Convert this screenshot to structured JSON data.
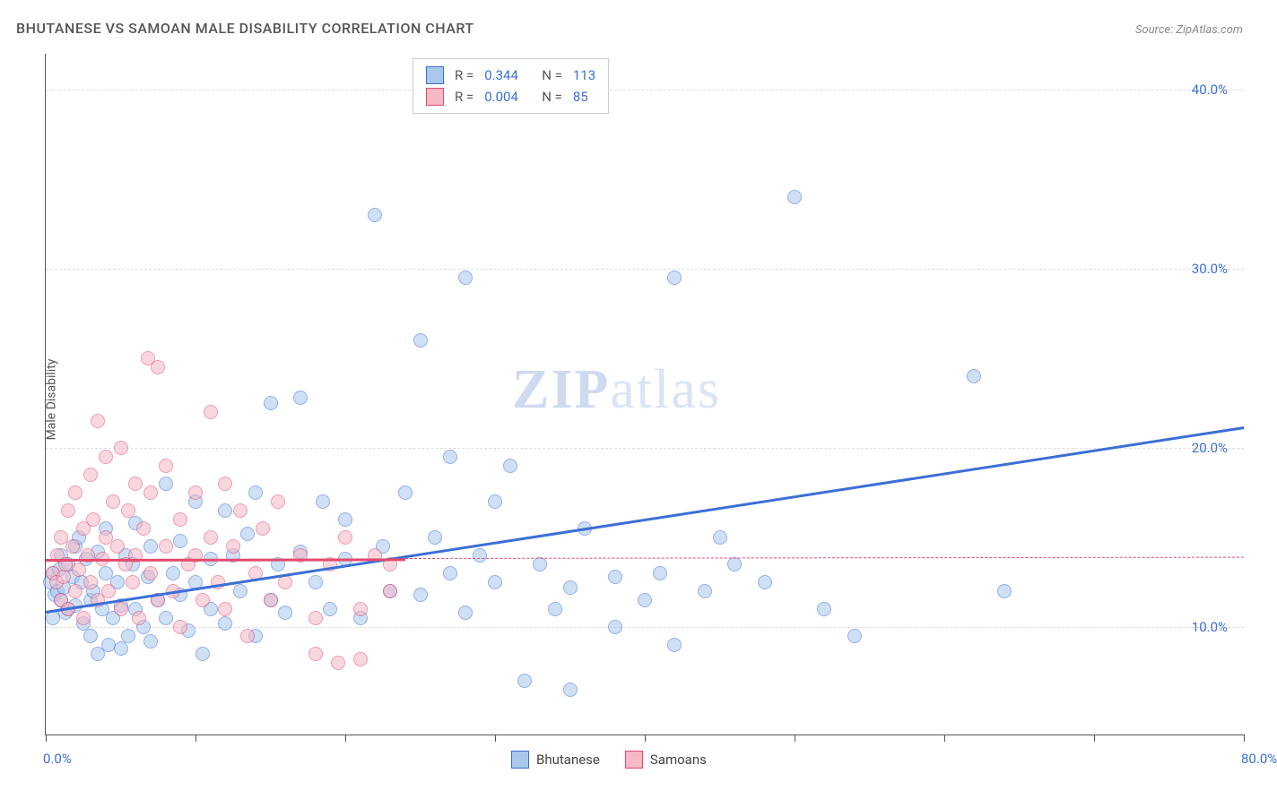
{
  "title": "BHUTANESE VS SAMOAN MALE DISABILITY CORRELATION CHART",
  "source": "Source: ZipAtlas.com",
  "y_axis_label": "Male Disability",
  "watermark": {
    "bold": "ZIP",
    "rest": "atlas"
  },
  "chart": {
    "type": "scatter",
    "background_color": "#ffffff",
    "grid_color": "#dddddd",
    "axis_color": "#555555",
    "xlim": [
      0,
      80
    ],
    "ylim": [
      4,
      42
    ],
    "x_ticks": [
      0,
      10,
      20,
      30,
      40,
      50,
      60,
      70,
      80
    ],
    "x_tick_labels": {
      "0": "0.0%",
      "80": "80.0%"
    },
    "y_ticks": [
      10,
      20,
      30,
      40
    ],
    "y_tick_labels": [
      "10.0%",
      "20.0%",
      "30.0%",
      "40.0%"
    ],
    "point_radius": 8,
    "point_border_width": 1,
    "trend_line_width": 2.5,
    "series": [
      {
        "name": "Bhutanese",
        "fill_color": "#a9c8ec",
        "fill_opacity": 0.55,
        "stroke_color": "#3b6fd6",
        "trend": {
          "x1": 0,
          "y1": 10.9,
          "x2": 80,
          "y2": 21.2,
          "dash_from_x": null
        },
        "R": "0.344",
        "N": "113",
        "points": [
          [
            0.3,
            12.5
          ],
          [
            0.5,
            13.0
          ],
          [
            0.6,
            11.8
          ],
          [
            0.5,
            10.5
          ],
          [
            0.8,
            12.0
          ],
          [
            0.9,
            13.2
          ],
          [
            1.0,
            14.0
          ],
          [
            1.0,
            11.5
          ],
          [
            1.2,
            12.2
          ],
          [
            1.3,
            10.8
          ],
          [
            1.5,
            13.5
          ],
          [
            1.5,
            11.0
          ],
          [
            1.8,
            12.8
          ],
          [
            2.0,
            14.5
          ],
          [
            2.0,
            11.2
          ],
          [
            2.2,
            15.0
          ],
          [
            2.4,
            12.5
          ],
          [
            2.5,
            10.2
          ],
          [
            2.7,
            13.8
          ],
          [
            3.0,
            11.5
          ],
          [
            3.0,
            9.5
          ],
          [
            3.2,
            12.0
          ],
          [
            3.5,
            14.2
          ],
          [
            3.5,
            8.5
          ],
          [
            3.8,
            11.0
          ],
          [
            4.0,
            13.0
          ],
          [
            4.0,
            15.5
          ],
          [
            4.2,
            9.0
          ],
          [
            4.5,
            10.5
          ],
          [
            4.8,
            12.5
          ],
          [
            5.0,
            11.2
          ],
          [
            5.0,
            8.8
          ],
          [
            5.3,
            14.0
          ],
          [
            5.5,
            9.5
          ],
          [
            5.8,
            13.5
          ],
          [
            6.0,
            11.0
          ],
          [
            6.0,
            15.8
          ],
          [
            6.5,
            10.0
          ],
          [
            6.8,
            12.8
          ],
          [
            7.0,
            14.5
          ],
          [
            7.0,
            9.2
          ],
          [
            7.5,
            11.5
          ],
          [
            8.0,
            18.0
          ],
          [
            8.0,
            10.5
          ],
          [
            8.5,
            13.0
          ],
          [
            9.0,
            11.8
          ],
          [
            9.0,
            14.8
          ],
          [
            9.5,
            9.8
          ],
          [
            10.0,
            12.5
          ],
          [
            10.0,
            17.0
          ],
          [
            10.5,
            8.5
          ],
          [
            11.0,
            13.8
          ],
          [
            11.0,
            11.0
          ],
          [
            12.0,
            16.5
          ],
          [
            12.0,
            10.2
          ],
          [
            12.5,
            14.0
          ],
          [
            13.0,
            12.0
          ],
          [
            13.5,
            15.2
          ],
          [
            14.0,
            17.5
          ],
          [
            14.0,
            9.5
          ],
          [
            15.0,
            22.5
          ],
          [
            15.0,
            11.5
          ],
          [
            15.5,
            13.5
          ],
          [
            16.0,
            10.8
          ],
          [
            17.0,
            22.8
          ],
          [
            17.0,
            14.2
          ],
          [
            18.0,
            12.5
          ],
          [
            18.5,
            17.0
          ],
          [
            19.0,
            11.0
          ],
          [
            20.0,
            13.8
          ],
          [
            20.0,
            16.0
          ],
          [
            21.0,
            10.5
          ],
          [
            22.0,
            33.0
          ],
          [
            22.5,
            14.5
          ],
          [
            23.0,
            12.0
          ],
          [
            24.0,
            17.5
          ],
          [
            25.0,
            11.8
          ],
          [
            25.0,
            26.0
          ],
          [
            26.0,
            15.0
          ],
          [
            27.0,
            13.0
          ],
          [
            27.0,
            19.5
          ],
          [
            28.0,
            29.5
          ],
          [
            28.0,
            10.8
          ],
          [
            29.0,
            14.0
          ],
          [
            30.0,
            12.5
          ],
          [
            30.0,
            17.0
          ],
          [
            31.0,
            19.0
          ],
          [
            32.0,
            7.0
          ],
          [
            33.0,
            13.5
          ],
          [
            34.0,
            11.0
          ],
          [
            35.0,
            12.2
          ],
          [
            35.0,
            6.5
          ],
          [
            36.0,
            15.5
          ],
          [
            38.0,
            10.0
          ],
          [
            38.0,
            12.8
          ],
          [
            40.0,
            11.5
          ],
          [
            41.0,
            13.0
          ],
          [
            42.0,
            9.0
          ],
          [
            42.0,
            29.5
          ],
          [
            44.0,
            12.0
          ],
          [
            45.0,
            15.0
          ],
          [
            46.0,
            13.5
          ],
          [
            48.0,
            12.5
          ],
          [
            50.0,
            34.0
          ],
          [
            52.0,
            11.0
          ],
          [
            54.0,
            9.5
          ],
          [
            62.0,
            24.0
          ],
          [
            64.0,
            12.0
          ]
        ]
      },
      {
        "name": "Samoans",
        "fill_color": "#f5b8c4",
        "fill_opacity": 0.55,
        "stroke_color": "#e24a6e",
        "trend": {
          "x1": 0,
          "y1": 13.8,
          "x2": 80,
          "y2": 13.9,
          "dash_from_x": 24
        },
        "R": "0.004",
        "N": "85",
        "points": [
          [
            0.5,
            13.0
          ],
          [
            0.7,
            12.5
          ],
          [
            0.8,
            14.0
          ],
          [
            1.0,
            11.5
          ],
          [
            1.0,
            15.0
          ],
          [
            1.2,
            12.8
          ],
          [
            1.3,
            13.5
          ],
          [
            1.5,
            16.5
          ],
          [
            1.5,
            11.0
          ],
          [
            1.8,
            14.5
          ],
          [
            2.0,
            12.0
          ],
          [
            2.0,
            17.5
          ],
          [
            2.2,
            13.2
          ],
          [
            2.5,
            15.5
          ],
          [
            2.5,
            10.5
          ],
          [
            2.8,
            14.0
          ],
          [
            3.0,
            18.5
          ],
          [
            3.0,
            12.5
          ],
          [
            3.2,
            16.0
          ],
          [
            3.5,
            11.5
          ],
          [
            3.5,
            21.5
          ],
          [
            3.8,
            13.8
          ],
          [
            4.0,
            15.0
          ],
          [
            4.0,
            19.5
          ],
          [
            4.2,
            12.0
          ],
          [
            4.5,
            17.0
          ],
          [
            4.8,
            14.5
          ],
          [
            5.0,
            11.0
          ],
          [
            5.0,
            20.0
          ],
          [
            5.3,
            13.5
          ],
          [
            5.5,
            16.5
          ],
          [
            5.8,
            12.5
          ],
          [
            6.0,
            18.0
          ],
          [
            6.0,
            14.0
          ],
          [
            6.2,
            10.5
          ],
          [
            6.5,
            15.5
          ],
          [
            6.8,
            25.0
          ],
          [
            7.0,
            13.0
          ],
          [
            7.0,
            17.5
          ],
          [
            7.5,
            11.5
          ],
          [
            7.5,
            24.5
          ],
          [
            8.0,
            14.5
          ],
          [
            8.0,
            19.0
          ],
          [
            8.5,
            12.0
          ],
          [
            9.0,
            16.0
          ],
          [
            9.0,
            10.0
          ],
          [
            9.5,
            13.5
          ],
          [
            10.0,
            17.5
          ],
          [
            10.0,
            14.0
          ],
          [
            10.5,
            11.5
          ],
          [
            11.0,
            22.0
          ],
          [
            11.0,
            15.0
          ],
          [
            11.5,
            12.5
          ],
          [
            12.0,
            18.0
          ],
          [
            12.0,
            11.0
          ],
          [
            12.5,
            14.5
          ],
          [
            13.0,
            16.5
          ],
          [
            13.5,
            9.5
          ],
          [
            14.0,
            13.0
          ],
          [
            14.5,
            15.5
          ],
          [
            15.0,
            11.5
          ],
          [
            15.5,
            17.0
          ],
          [
            16.0,
            12.5
          ],
          [
            17.0,
            14.0
          ],
          [
            18.0,
            10.5
          ],
          [
            18.0,
            8.5
          ],
          [
            19.0,
            13.5
          ],
          [
            19.5,
            8.0
          ],
          [
            20.0,
            15.0
          ],
          [
            21.0,
            11.0
          ],
          [
            21.0,
            8.2
          ],
          [
            22.0,
            14.0
          ],
          [
            23.0,
            12.0
          ],
          [
            23.0,
            13.5
          ]
        ]
      }
    ]
  },
  "legend_top": {
    "rows": [
      {
        "swatch_fill": "#a9c8ec",
        "swatch_stroke": "#3b6fd6",
        "r_label": "R =",
        "r_val": "0.344",
        "n_label": "N =",
        "n_val": "113"
      },
      {
        "swatch_fill": "#f5b8c4",
        "swatch_stroke": "#e24a6e",
        "r_label": "R =",
        "r_val": "0.004",
        "n_label": "N =",
        "n_val": "85"
      }
    ]
  },
  "legend_bottom": {
    "items": [
      {
        "swatch_fill": "#a9c8ec",
        "swatch_stroke": "#3b6fd6",
        "label": "Bhutanese"
      },
      {
        "swatch_fill": "#f5b8c4",
        "swatch_stroke": "#e24a6e",
        "label": "Samoans"
      }
    ]
  }
}
